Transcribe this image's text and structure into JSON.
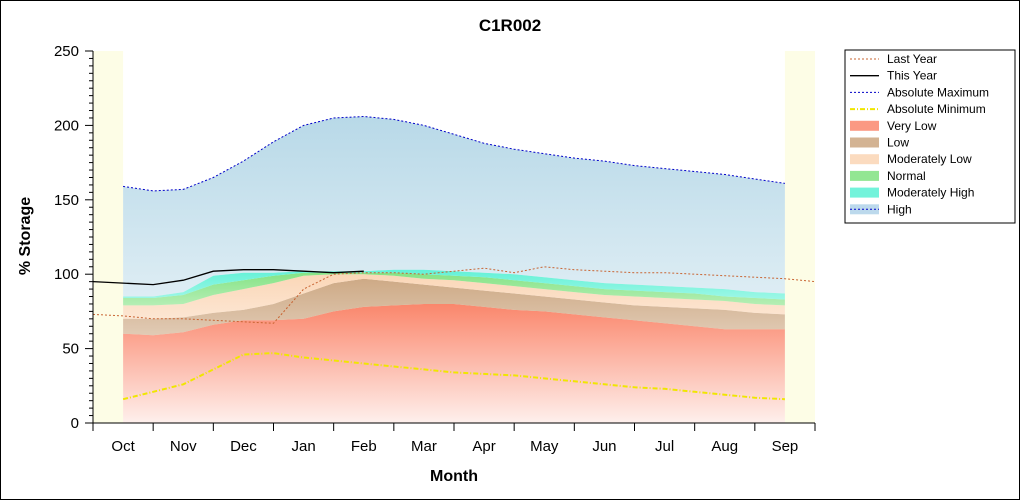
{
  "chart_data": {
    "type": "area",
    "title": "C1R002",
    "xlabel": "Month",
    "ylabel": "% Storage",
    "ylim": [
      0,
      250
    ],
    "yticks": [
      0,
      50,
      100,
      150,
      200,
      250
    ],
    "x_tick_labels": [
      "Oct",
      "Nov",
      "Dec",
      "Jan",
      "Feb",
      "Mar",
      "Apr",
      "May",
      "Jun",
      "Jul",
      "Aug",
      "Sep"
    ],
    "legend_position": "right",
    "x": [
      -0.5,
      0,
      0.5,
      1,
      1.5,
      2,
      2.5,
      3,
      3.5,
      4,
      4.5,
      5,
      5.5,
      6,
      6.5,
      7,
      7.5,
      8,
      8.5,
      9,
      9.5,
      10,
      10.5,
      11,
      11.5
    ],
    "bands": [
      {
        "name": "Very Low",
        "color": "#fa8064",
        "lower": [
          0,
          0,
          0,
          0,
          0,
          0,
          0,
          0,
          0,
          0,
          0,
          0,
          0,
          0,
          0,
          0,
          0,
          0,
          0,
          0,
          0,
          0,
          0,
          0,
          0
        ],
        "upper": [
          null,
          60,
          59,
          61,
          66,
          69,
          69,
          70,
          75,
          78,
          79,
          80,
          80,
          78,
          76,
          75,
          73,
          71,
          69,
          67,
          65,
          63,
          63,
          63,
          null
        ]
      },
      {
        "name": "Low",
        "color": "#c8a078",
        "lower": [
          null,
          60,
          59,
          61,
          66,
          69,
          69,
          70,
          75,
          78,
          79,
          80,
          80,
          78,
          76,
          75,
          73,
          71,
          69,
          67,
          65,
          63,
          63,
          63,
          null
        ],
        "upper": [
          null,
          70,
          70,
          71,
          74,
          76,
          80,
          87,
          94,
          97,
          95,
          93,
          91,
          89,
          87,
          85,
          83,
          81,
          79,
          78,
          77,
          76,
          74,
          73,
          null
        ]
      },
      {
        "name": "Moderately Low",
        "color": "#fad2af",
        "lower": [
          null,
          70,
          70,
          71,
          74,
          76,
          80,
          87,
          94,
          97,
          95,
          93,
          91,
          89,
          87,
          85,
          83,
          81,
          79,
          78,
          77,
          76,
          74,
          73,
          null
        ],
        "upper": [
          null,
          79,
          79,
          80,
          86,
          90,
          94,
          99,
          100,
          100,
          99,
          97,
          96,
          94,
          92,
          90,
          88,
          86,
          85,
          84,
          83,
          82,
          80,
          79,
          null
        ]
      },
      {
        "name": "Normal",
        "color": "#78e078",
        "lower": [
          null,
          79,
          79,
          80,
          86,
          90,
          94,
          99,
          100,
          100,
          99,
          97,
          96,
          94,
          92,
          90,
          88,
          86,
          85,
          84,
          83,
          82,
          80,
          79,
          null
        ],
        "upper": [
          null,
          84,
          84,
          86,
          93,
          96,
          99,
          101,
          101,
          101,
          101,
          100,
          99,
          98,
          96,
          94,
          92,
          90,
          89,
          88,
          87,
          85,
          84,
          83,
          null
        ]
      },
      {
        "name": "Moderately High",
        "color": "#50f0d2",
        "lower": [
          null,
          84,
          84,
          86,
          93,
          96,
          99,
          101,
          101,
          101,
          101,
          100,
          99,
          98,
          96,
          94,
          92,
          90,
          89,
          88,
          87,
          85,
          84,
          83,
          null
        ],
        "upper": [
          null,
          85,
          85,
          88,
          99,
          101,
          101,
          102,
          102,
          102,
          103,
          103,
          102,
          101,
          100,
          98,
          96,
          94,
          93,
          92,
          91,
          90,
          88,
          87,
          null
        ]
      },
      {
        "name": "High",
        "color": "#a0cce0",
        "lower": [
          null,
          85,
          85,
          88,
          99,
          101,
          101,
          102,
          102,
          102,
          103,
          103,
          102,
          101,
          100,
          98,
          96,
          94,
          93,
          92,
          91,
          90,
          88,
          87,
          null
        ],
        "upper": [
          null,
          159,
          156,
          157,
          165,
          176,
          189,
          200,
          205,
          206,
          204,
          200,
          194,
          188,
          184,
          181,
          178,
          176,
          173,
          171,
          169,
          167,
          164,
          161,
          null
        ]
      }
    ],
    "series": [
      {
        "name": "Last Year",
        "color": "#c86432",
        "style": "dotted",
        "values": [
          73,
          72,
          70,
          70,
          69,
          68,
          67,
          90,
          100,
          101,
          101,
          100,
          102,
          104,
          101,
          105,
          103,
          102,
          101,
          101,
          100,
          99,
          98,
          97,
          95
        ]
      },
      {
        "name": "This Year",
        "color": "#000000",
        "style": "solid",
        "values": [
          95,
          94,
          93,
          96,
          102,
          103,
          103,
          102,
          101,
          102,
          null,
          null,
          null,
          null,
          null,
          null,
          null,
          null,
          null,
          null,
          null,
          null,
          null,
          null,
          null
        ]
      },
      {
        "name": "Absolute Maximum",
        "color": "#0000c8",
        "style": "dotted",
        "values": [
          null,
          159,
          156,
          157,
          165,
          176,
          189,
          200,
          205,
          206,
          204,
          200,
          194,
          188,
          184,
          181,
          178,
          176,
          173,
          171,
          169,
          167,
          164,
          161,
          null
        ]
      },
      {
        "name": "Absolute Minimum",
        "color": "#f0e600",
        "style": "dashdot",
        "values": [
          null,
          16,
          21,
          26,
          36,
          46,
          47,
          44,
          42,
          40,
          38,
          36,
          34,
          33,
          32,
          30,
          28,
          26,
          24,
          23,
          21,
          19,
          17,
          16,
          null
        ]
      }
    ]
  }
}
